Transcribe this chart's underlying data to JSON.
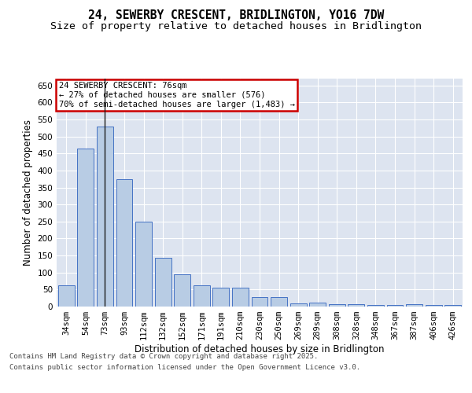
{
  "title_line1": "24, SEWERBY CRESCENT, BRIDLINGTON, YO16 7DW",
  "title_line2": "Size of property relative to detached houses in Bridlington",
  "xlabel": "Distribution of detached houses by size in Bridlington",
  "ylabel": "Number of detached properties",
  "categories": [
    "34sqm",
    "54sqm",
    "73sqm",
    "93sqm",
    "112sqm",
    "132sqm",
    "152sqm",
    "171sqm",
    "191sqm",
    "210sqm",
    "230sqm",
    "250sqm",
    "269sqm",
    "289sqm",
    "308sqm",
    "328sqm",
    "348sqm",
    "367sqm",
    "387sqm",
    "406sqm",
    "426sqm"
  ],
  "values": [
    62,
    465,
    530,
    375,
    250,
    143,
    95,
    63,
    55,
    55,
    28,
    28,
    10,
    12,
    8,
    7,
    5,
    5,
    7,
    4,
    4
  ],
  "bar_color": "#b8cce4",
  "bar_edge_color": "#4472c4",
  "background_color": "#dde4f0",
  "ylim": [
    0,
    670
  ],
  "yticks": [
    0,
    50,
    100,
    150,
    200,
    250,
    300,
    350,
    400,
    450,
    500,
    550,
    600,
    650
  ],
  "vline_x_index": 2,
  "vline_color": "#1a1a1a",
  "annotation_title": "24 SEWERBY CRESCENT: 76sqm",
  "annotation_line2": "← 27% of detached houses are smaller (576)",
  "annotation_line3": "70% of semi-detached houses are larger (1,483) →",
  "annotation_box_edge_color": "#cc0000",
  "footer_line1": "Contains HM Land Registry data © Crown copyright and database right 2025.",
  "footer_line2": "Contains public sector information licensed under the Open Government Licence v3.0.",
  "title_fontsize": 10.5,
  "subtitle_fontsize": 9.5,
  "axis_label_fontsize": 8.5,
  "tick_fontsize": 7.5,
  "annotation_fontsize": 7.5,
  "footer_fontsize": 6.5
}
